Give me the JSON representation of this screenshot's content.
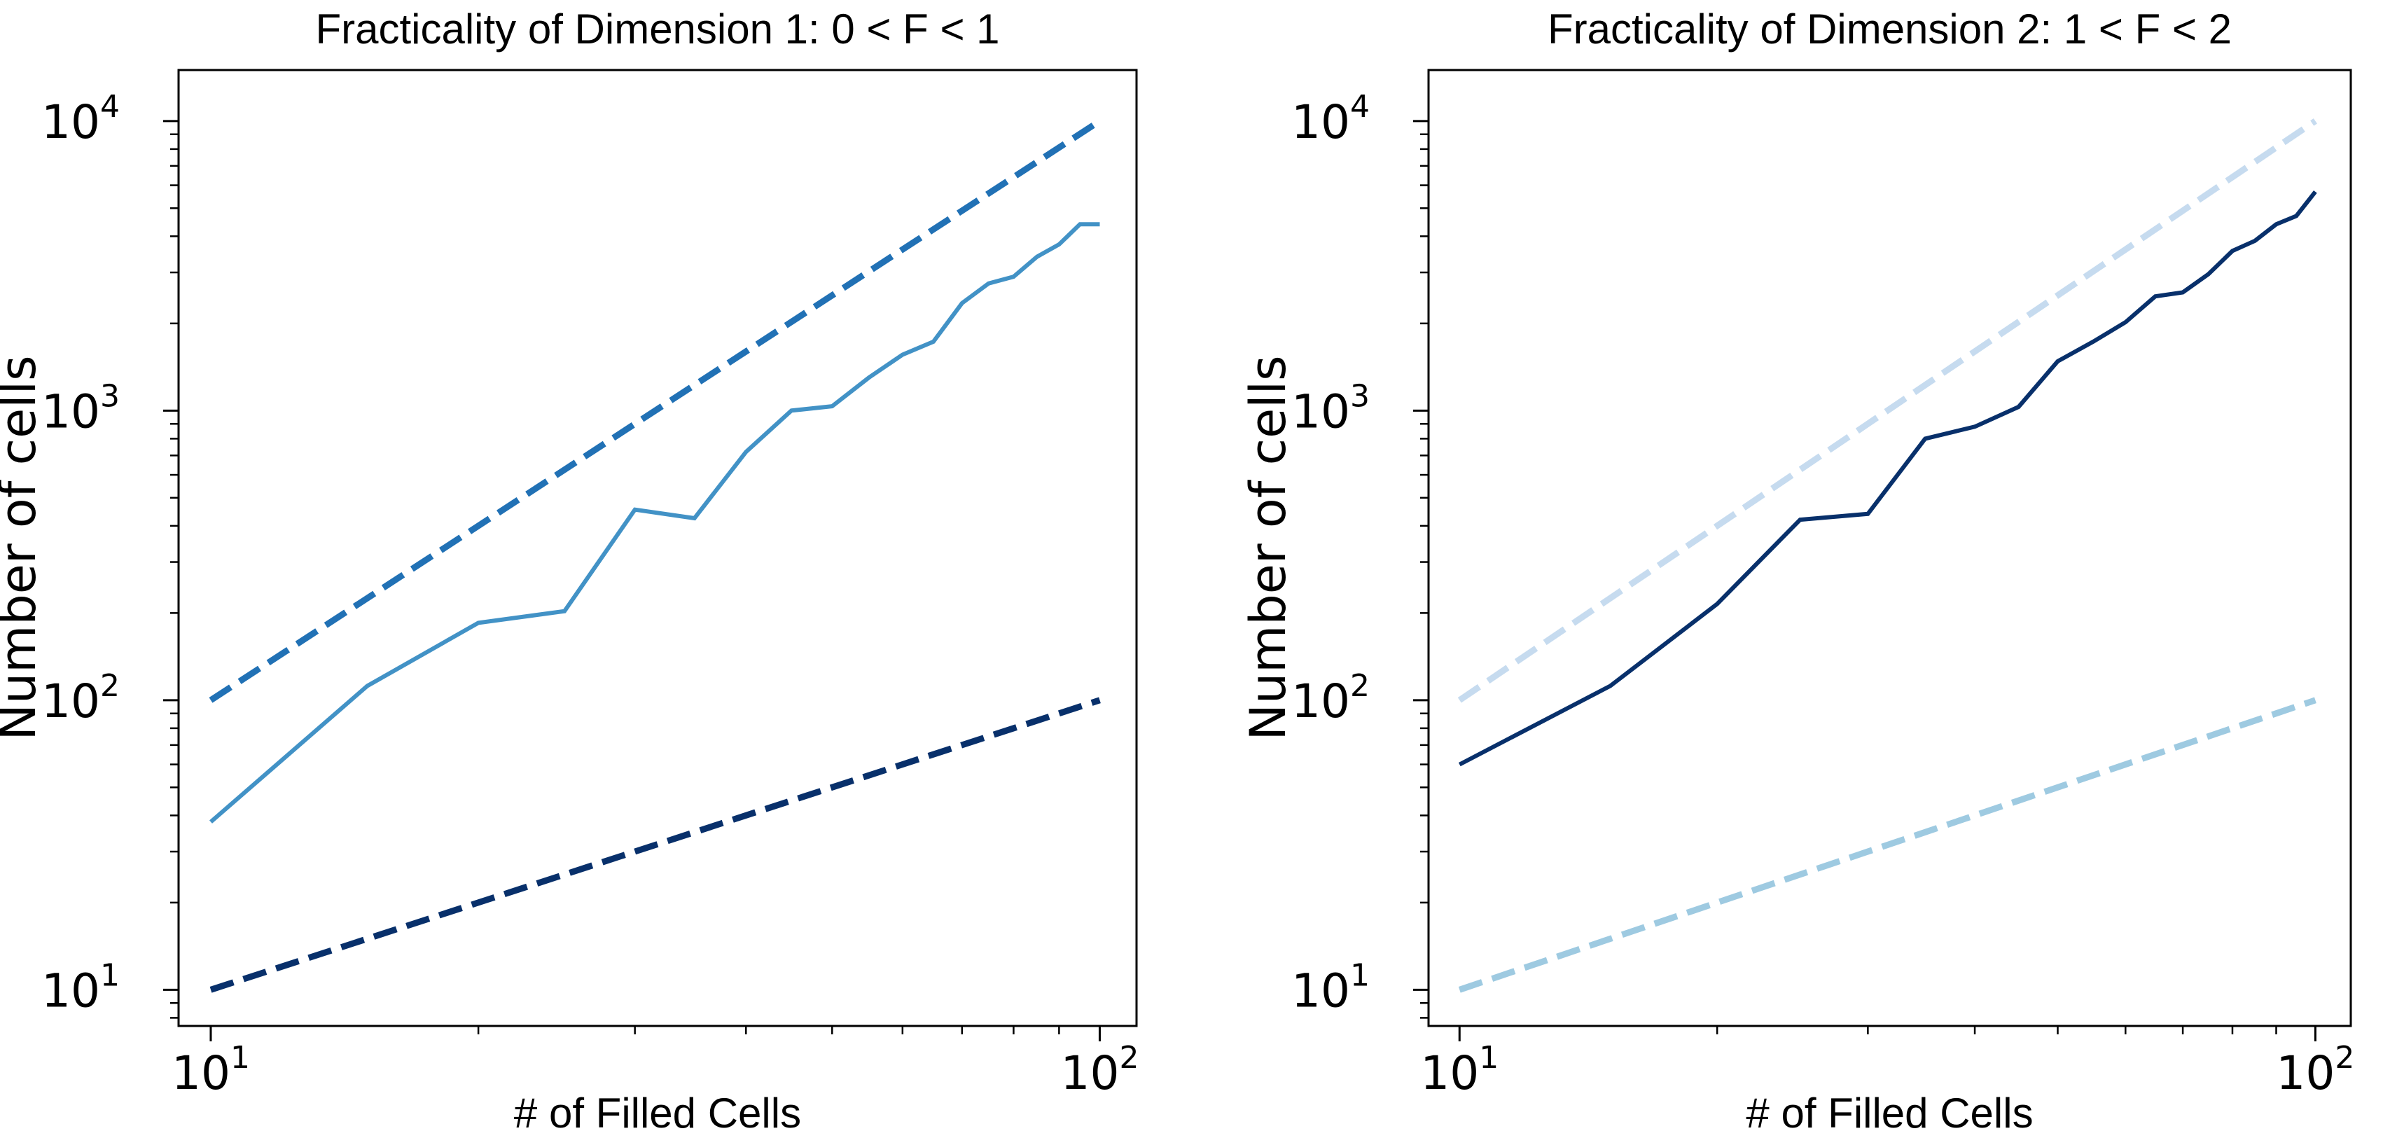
{
  "chart_data": [
    {
      "type": "line",
      "title": "Fracticality of Dimension 1: 0 < F < 1",
      "xlabel": "# of Filled Cells",
      "ylabel": "Number of cells",
      "xscale": "log",
      "yscale": "log",
      "xlim": [
        9.2,
        110
      ],
      "ylim": [
        7.5,
        15000
      ],
      "grid": false,
      "legend": "none",
      "xticks": [
        {
          "value": 10,
          "base": "10",
          "exp": "1"
        },
        {
          "value": 100,
          "base": "10",
          "exp": "2"
        }
      ],
      "yticks": [
        {
          "value": 10,
          "base": "10",
          "exp": "1"
        },
        {
          "value": 100,
          "base": "10",
          "exp": "2"
        },
        {
          "value": 1000,
          "base": "10",
          "exp": "3"
        },
        {
          "value": 10000,
          "base": "10",
          "exp": "4"
        }
      ],
      "series": [
        {
          "style": "dashed",
          "color": "#2171b5",
          "x": [
            10,
            100
          ],
          "y": [
            100,
            10000
          ]
        },
        {
          "style": "dashed",
          "color": "#08306b",
          "x": [
            10,
            100
          ],
          "y": [
            10,
            100
          ]
        },
        {
          "style": "solid",
          "color": "#4292c6",
          "x": [
            10,
            15,
            20,
            25,
            30,
            35,
            40,
            45,
            50,
            55,
            60,
            65,
            70,
            75,
            80,
            85,
            90,
            95,
            100
          ],
          "y": [
            38,
            112,
            185,
            203,
            455,
            425,
            720,
            1000,
            1035,
            1300,
            1560,
            1730,
            2350,
            2750,
            2900,
            3400,
            3750,
            4400,
            4400
          ]
        }
      ]
    },
    {
      "type": "line",
      "title": "Fracticality of Dimension 2: 1 < F < 2",
      "xlabel": "# of Filled Cells",
      "ylabel": "Number of cells",
      "xscale": "log",
      "yscale": "log",
      "xlim": [
        9.2,
        110
      ],
      "ylim": [
        7.5,
        15000
      ],
      "grid": false,
      "legend": "none",
      "xticks": [
        {
          "value": 10,
          "base": "10",
          "exp": "1"
        },
        {
          "value": 100,
          "base": "10",
          "exp": "2"
        }
      ],
      "yticks": [
        {
          "value": 10,
          "base": "10",
          "exp": "1"
        },
        {
          "value": 100,
          "base": "10",
          "exp": "2"
        },
        {
          "value": 1000,
          "base": "10",
          "exp": "3"
        },
        {
          "value": 10000,
          "base": "10",
          "exp": "4"
        }
      ],
      "series": [
        {
          "style": "dashed",
          "color": "#c6dbef",
          "x": [
            10,
            100
          ],
          "y": [
            100,
            10000
          ]
        },
        {
          "style": "dashed",
          "color": "#9ecae1",
          "x": [
            10,
            100
          ],
          "y": [
            10,
            100
          ]
        },
        {
          "style": "solid",
          "color": "#08306b",
          "x": [
            10,
            15,
            20,
            25,
            30,
            35,
            40,
            45,
            50,
            55,
            60,
            65,
            70,
            75,
            80,
            85,
            90,
            95,
            100
          ],
          "y": [
            60,
            112,
            215,
            420,
            440,
            800,
            880,
            1030,
            1480,
            1730,
            2020,
            2480,
            2560,
            2960,
            3560,
            3860,
            4400,
            4700,
            5700
          ]
        }
      ]
    }
  ]
}
